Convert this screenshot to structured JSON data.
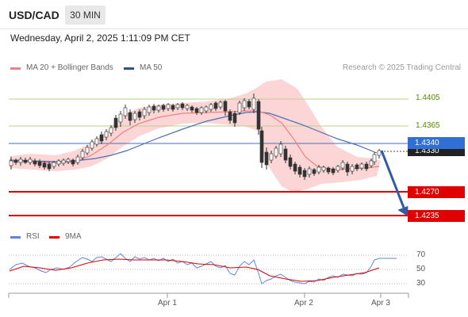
{
  "header": {
    "symbol": "USD/CAD",
    "timeframe": "30 MIN"
  },
  "datetime": "Wednesday, April 2, 2025 1:11:09 PM CET",
  "legend": {
    "ma20_label": "MA 20 + Bollinger Bands",
    "ma50_label": "MA 50",
    "credit": "Research © 2025 Trading Central"
  },
  "rsi_legend": {
    "rsi_label": "RSI",
    "ma_label": "9MA"
  },
  "levels": {
    "r2": "1.4405",
    "r1": "1.4365",
    "current_blue": "1.4340",
    "current_black": "1.4330",
    "s1": "1.4270",
    "s2": "1.4235"
  },
  "rsi_axis": [
    "70",
    "50",
    "30"
  ],
  "x_axis": [
    "Apr 1",
    "Apr 2",
    "Apr 3"
  ],
  "colors": {
    "resistance": "#8fb04a",
    "support": "#e00000",
    "ma50": "#4a6fb5",
    "ma20": "#f08080",
    "bollinger": "#fcd6d6",
    "current_tag": "#2f6fd6",
    "arrow": "#2e5aa8",
    "rsi": "#5b86e5",
    "rsi_ma": "#e00000"
  },
  "chart_data": {
    "type": "candlestick",
    "y_range": [
      1.4215,
      1.4425
    ],
    "resistance_levels": [
      1.4405,
      1.4365
    ],
    "support_levels": [
      1.427,
      1.4235
    ],
    "last_price": 1.434,
    "projected_target": 1.4235,
    "rsi": {
      "levels": [
        70,
        50,
        30
      ]
    }
  }
}
